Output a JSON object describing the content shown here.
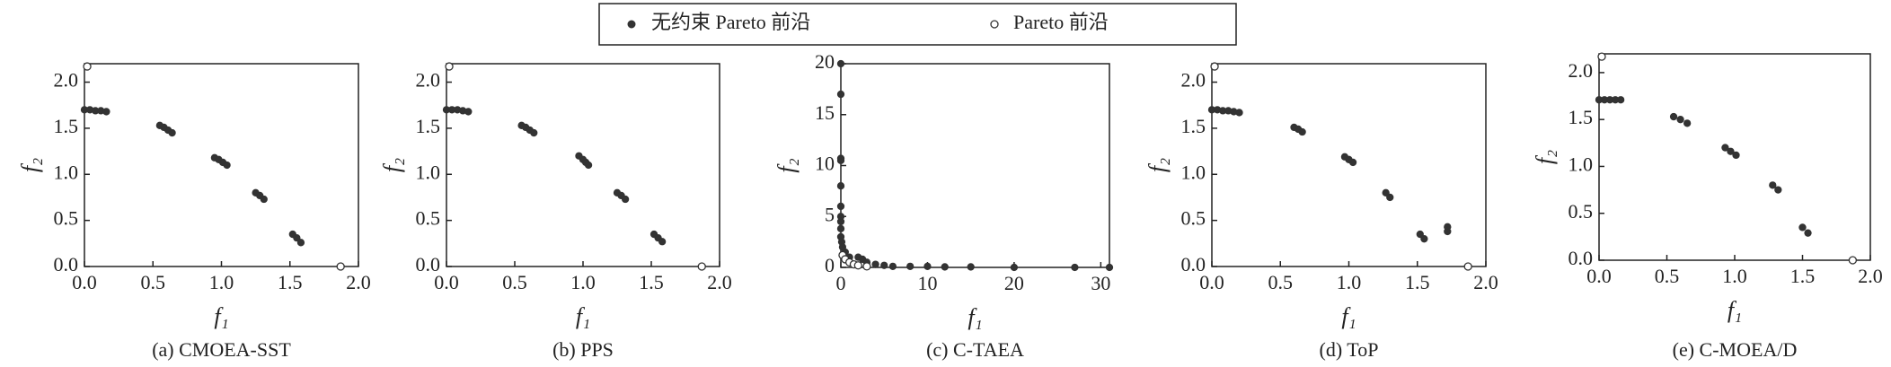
{
  "chart_data": [
    {
      "type": "scatter",
      "title": "(a) CMOEA-SST",
      "x_label": "f₁",
      "y_label": "f₂",
      "xlim": [
        0,
        2
      ],
      "ylim": [
        0,
        2.2
      ],
      "xticks": [
        {
          "value": 0,
          "label": "0.0"
        },
        {
          "value": 0.5,
          "label": "0.5"
        },
        {
          "value": 1,
          "label": "1.0"
        },
        {
          "value": 1.5,
          "label": "1.5"
        },
        {
          "value": 2,
          "label": "2.0"
        }
      ],
      "yticks": [
        {
          "value": 0,
          "label": "0.0"
        },
        {
          "value": 0.5,
          "label": "0.5"
        },
        {
          "value": 1,
          "label": "1.0"
        },
        {
          "value": 1.5,
          "label": "1.5"
        },
        {
          "value": 2,
          "label": "2.0"
        }
      ],
      "series": [
        {
          "name": "无约束 Pareto 前沿",
          "color": "#333333",
          "filled": true,
          "x": [
            0.0,
            0.04,
            0.08,
            0.12,
            0.16,
            0.55,
            0.58,
            0.61,
            0.64,
            0.95,
            0.98,
            1.01,
            1.04,
            1.25,
            1.28,
            1.31,
            1.52,
            1.55,
            1.58
          ],
          "values": [
            1.7,
            1.7,
            1.69,
            1.69,
            1.68,
            1.53,
            1.51,
            1.48,
            1.45,
            1.18,
            1.16,
            1.13,
            1.1,
            0.8,
            0.77,
            0.73,
            0.35,
            0.31,
            0.26
          ]
        },
        {
          "name": "Pareto 前沿",
          "color": "#333333",
          "filled": false,
          "x": [
            0.02,
            1.87
          ],
          "values": [
            2.17,
            0.0
          ]
        }
      ]
    },
    {
      "type": "scatter",
      "title": "(b) PPS",
      "x_label": "f₁",
      "y_label": "f₂",
      "xlim": [
        0,
        2
      ],
      "ylim": [
        0,
        2.2
      ],
      "xticks": [
        {
          "value": 0,
          "label": "0.0"
        },
        {
          "value": 0.5,
          "label": "0.5"
        },
        {
          "value": 1,
          "label": "1.0"
        },
        {
          "value": 1.5,
          "label": "1.5"
        },
        {
          "value": 2,
          "label": "2.0"
        }
      ],
      "yticks": [
        {
          "value": 0,
          "label": "0.0"
        },
        {
          "value": 0.5,
          "label": "0.5"
        },
        {
          "value": 1,
          "label": "1.0"
        },
        {
          "value": 1.5,
          "label": "1.5"
        },
        {
          "value": 2,
          "label": "2.0"
        }
      ],
      "series": [
        {
          "color": "#333333",
          "filled": true,
          "x": [
            0.0,
            0.04,
            0.08,
            0.12,
            0.16,
            0.55,
            0.58,
            0.61,
            0.64,
            0.97,
            1.0,
            1.02,
            1.04,
            1.25,
            1.28,
            1.31,
            1.52,
            1.55,
            1.58
          ],
          "values": [
            1.7,
            1.7,
            1.7,
            1.69,
            1.68,
            1.53,
            1.51,
            1.48,
            1.45,
            1.2,
            1.16,
            1.13,
            1.1,
            0.8,
            0.77,
            0.73,
            0.35,
            0.31,
            0.27
          ]
        },
        {
          "color": "#333333",
          "filled": false,
          "x": [
            0.02,
            1.87
          ],
          "values": [
            2.17,
            0.0
          ]
        }
      ]
    },
    {
      "type": "scatter",
      "title": "(c) C-TAEA",
      "x_label": "f₁",
      "y_label": "f₂",
      "xlim": [
        0,
        31
      ],
      "ylim": [
        0,
        20
      ],
      "xticks": [
        0,
        10,
        20,
        30
      ],
      "yticks": [
        0,
        5,
        10,
        15,
        20
      ],
      "series": [
        {
          "color": "#333333",
          "filled": true,
          "x": [
            0,
            0,
            0,
            0,
            0,
            0,
            0,
            0,
            0,
            0,
            0.1,
            0.2,
            0.5,
            1,
            2,
            2.5,
            3,
            4,
            5,
            6,
            8,
            10,
            12,
            15,
            20,
            27,
            31
          ],
          "values": [
            20,
            17,
            10.7,
            10.5,
            8,
            6,
            5,
            4.5,
            3.8,
            3,
            2.5,
            2,
            1.5,
            1,
            1,
            0.8,
            0.5,
            0.3,
            0.2,
            0.1,
            0.1,
            0.1,
            0.05,
            0.05,
            0,
            0,
            0
          ]
        },
        {
          "color": "#333333",
          "filled": false,
          "x": [
            0.2,
            0.5,
            1,
            1.5,
            2,
            3
          ],
          "values": [
            1.2,
            0.8,
            0.5,
            0.3,
            0.2,
            0.1
          ]
        }
      ]
    },
    {
      "type": "scatter",
      "title": "(d) ToP",
      "x_label": "f₁",
      "y_label": "f₂",
      "xlim": [
        0,
        2
      ],
      "ylim": [
        0,
        2.2
      ],
      "xticks": [
        {
          "value": 0,
          "label": "0.0"
        },
        {
          "value": 0.5,
          "label": "0.5"
        },
        {
          "value": 1,
          "label": "1.0"
        },
        {
          "value": 1.5,
          "label": "1.5"
        },
        {
          "value": 2,
          "label": "2.0"
        }
      ],
      "yticks": [
        {
          "value": 0,
          "label": "0.0"
        },
        {
          "value": 0.5,
          "label": "0.5"
        },
        {
          "value": 1,
          "label": "1.0"
        },
        {
          "value": 1.5,
          "label": "1.5"
        },
        {
          "value": 2,
          "label": "2.0"
        }
      ],
      "series": [
        {
          "color": "#333333",
          "filled": true,
          "x": [
            0.0,
            0.04,
            0.08,
            0.12,
            0.16,
            0.2,
            0.6,
            0.63,
            0.66,
            0.97,
            1.0,
            1.03,
            1.27,
            1.3,
            1.52,
            1.55,
            1.72,
            1.72
          ],
          "values": [
            1.7,
            1.7,
            1.69,
            1.69,
            1.68,
            1.67,
            1.51,
            1.49,
            1.46,
            1.19,
            1.16,
            1.13,
            0.8,
            0.75,
            0.35,
            0.3,
            0.43,
            0.38
          ]
        },
        {
          "color": "#333333",
          "filled": false,
          "x": [
            0.02,
            1.87
          ],
          "values": [
            2.17,
            0.0
          ]
        }
      ]
    },
    {
      "type": "scatter",
      "title": "(e) C-MOEA/D",
      "x_label": "f₁",
      "y_label": "f₂",
      "xlim": [
        0,
        2
      ],
      "ylim": [
        0,
        2.2
      ],
      "xticks": [
        {
          "value": 0,
          "label": "0.0"
        },
        {
          "value": 0.5,
          "label": "0.5"
        },
        {
          "value": 1,
          "label": "1.0"
        },
        {
          "value": 1.5,
          "label": "1.5"
        },
        {
          "value": 2,
          "label": "2.0"
        }
      ],
      "yticks": [
        {
          "value": 0,
          "label": "0.0"
        },
        {
          "value": 0.5,
          "label": "0.5"
        },
        {
          "value": 1,
          "label": "1.0"
        },
        {
          "value": 1.5,
          "label": "1.5"
        },
        {
          "value": 2,
          "label": "2.0"
        }
      ],
      "series": [
        {
          "color": "#333333",
          "filled": true,
          "x": [
            0.0,
            0.04,
            0.08,
            0.12,
            0.16,
            0.55,
            0.6,
            0.65,
            0.93,
            0.97,
            1.01,
            1.28,
            1.32,
            1.5,
            1.54
          ],
          "values": [
            1.71,
            1.71,
            1.71,
            1.71,
            1.71,
            1.53,
            1.5,
            1.46,
            1.2,
            1.16,
            1.12,
            0.8,
            0.75,
            0.35,
            0.29
          ]
        },
        {
          "color": "#333333",
          "filled": false,
          "x": [
            0.02,
            1.87
          ],
          "values": [
            2.17,
            0.0
          ]
        }
      ]
    }
  ]
}
